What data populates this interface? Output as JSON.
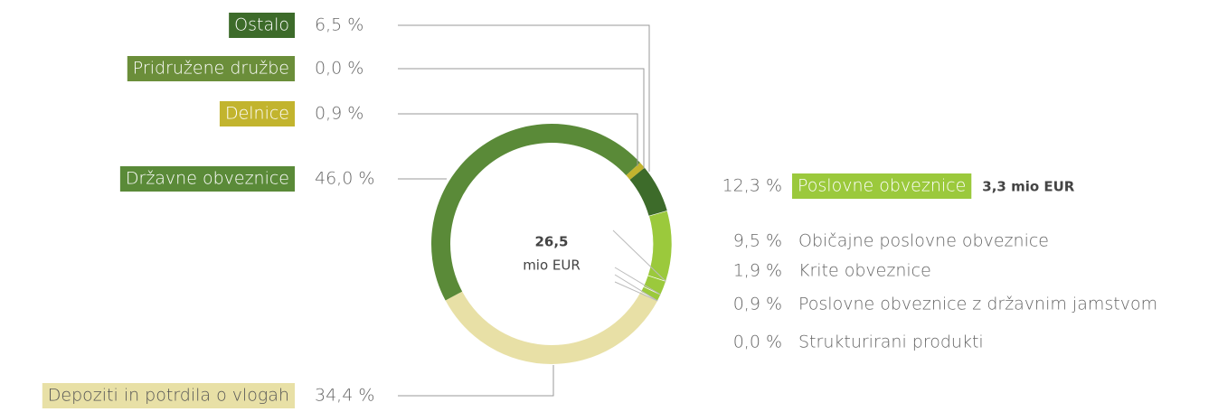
{
  "chart_data": {
    "type": "donut",
    "center_value": "26,5",
    "center_unit": "mio EUR",
    "categories": [
      "Poslovne obveznice",
      "Depoziti in potrdila o vlogah",
      "Državne obveznice",
      "Delnice",
      "Pridružene družbe",
      "Ostalo"
    ],
    "values": [
      12.3,
      34.4,
      46.0,
      0.9,
      0.0,
      6.5
    ],
    "value_labels": [
      "12,3 %",
      "34,4 %",
      "46,0 %",
      "0,9 %",
      "0,0 %",
      "6,5 %"
    ],
    "colors": [
      "#9bc93c",
      "#e8e0a6",
      "#5a8a38",
      "#c2b42e",
      "#6b8e3a",
      "#3d6b2a"
    ],
    "breakdown": {
      "annotation": "3,3 mio EUR",
      "categories": [
        "Običajne poslovne obveznice",
        "Krite obveznice",
        "Poslovne obveznice z državnim jamstvom",
        "Strukturirani produkti"
      ],
      "values": [
        9.5,
        1.9,
        0.9,
        0.0
      ],
      "value_labels": [
        "9,5 %",
        "1,9 %",
        "0,9 %",
        "0,0 %"
      ]
    }
  }
}
